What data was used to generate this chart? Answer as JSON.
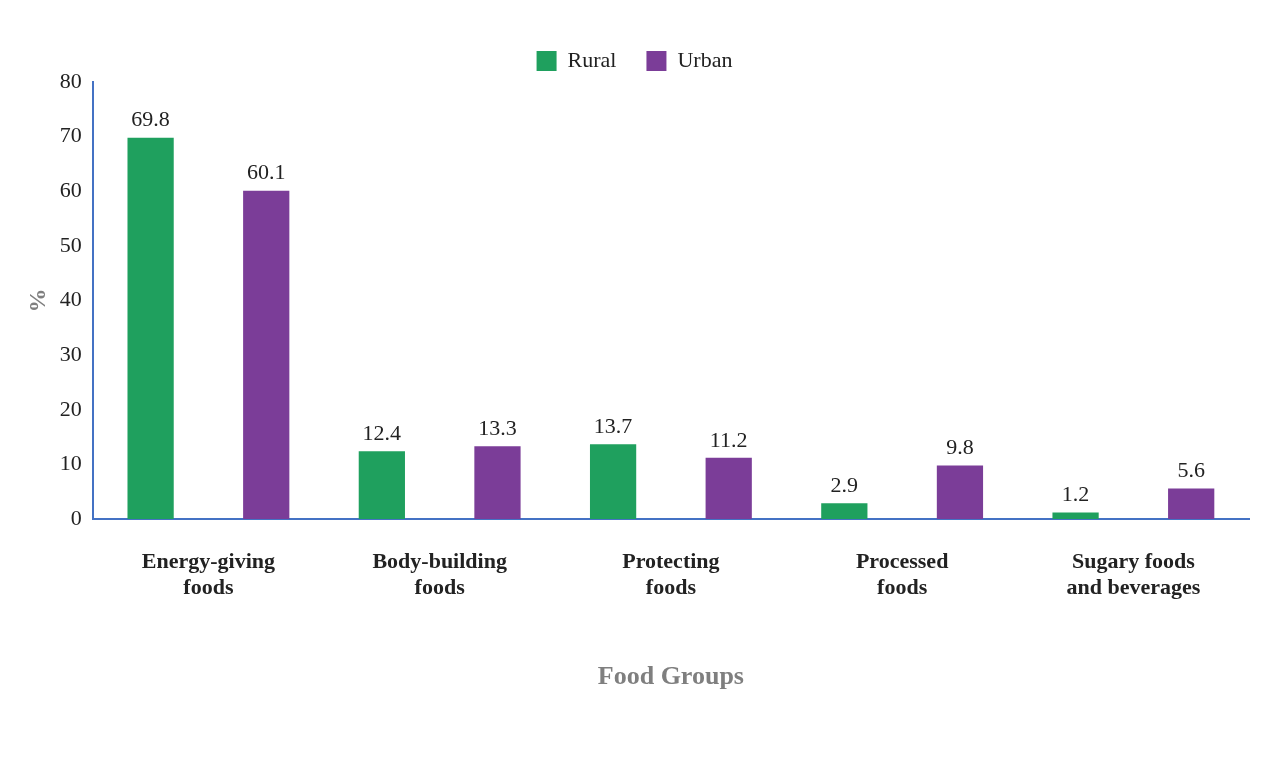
{
  "chart_data": {
    "type": "bar",
    "xlabel": "Food Groups",
    "ylabel": "%",
    "categories": [
      "Energy-giving foods",
      "Body-building foods",
      "Protecting foods",
      "Processed foods",
      "Sugary foods and beverages"
    ],
    "series": [
      {
        "name": "Rural",
        "color": "#1fa05e",
        "values": [
          69.8,
          12.4,
          13.7,
          2.9,
          1.2
        ]
      },
      {
        "name": "Urban",
        "color": "#7b3d98",
        "values": [
          60.1,
          13.3,
          11.2,
          9.8,
          5.6
        ]
      }
    ],
    "ylim": [
      0,
      80
    ],
    "yticks": [
      0,
      10,
      20,
      30,
      40,
      50,
      60,
      70,
      80
    ],
    "grid": false,
    "legend": "top",
    "data_labels": true
  }
}
